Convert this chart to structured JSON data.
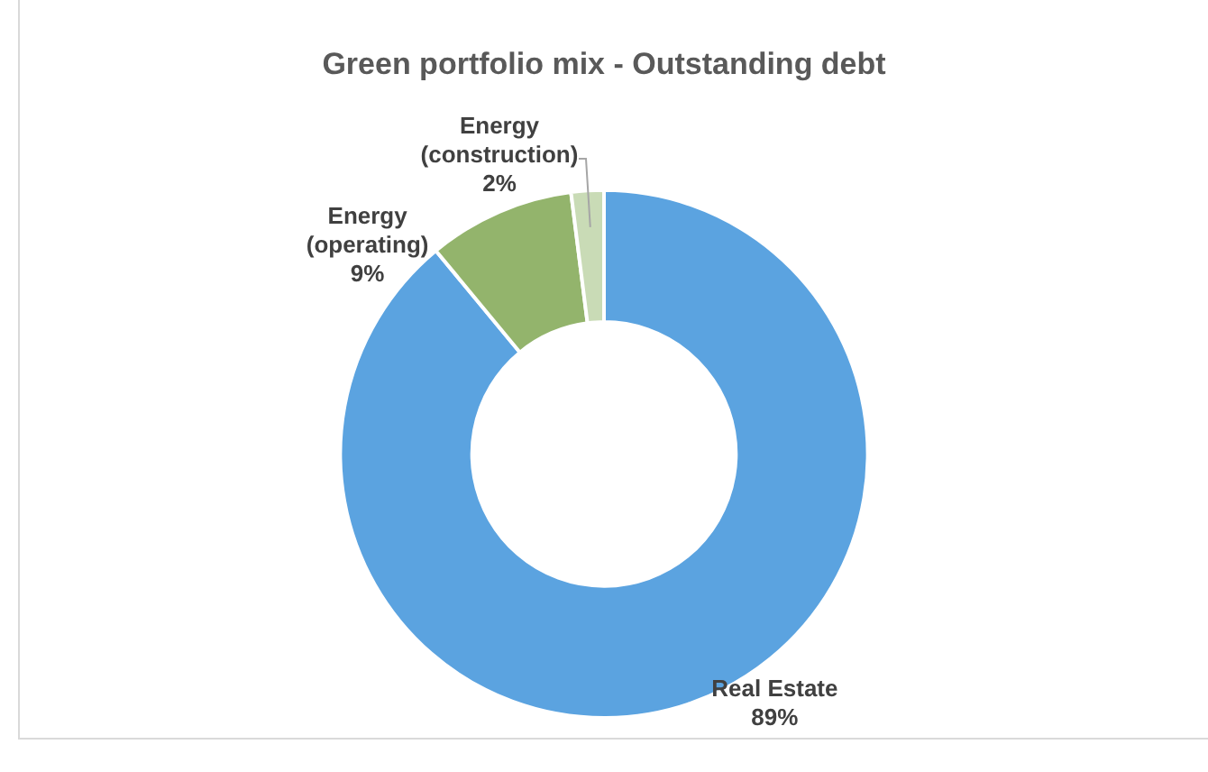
{
  "chart_data": {
    "type": "donut",
    "title": "Green portfolio mix - Outstanding debt",
    "categories": [
      "Real Estate",
      "Energy (operating)",
      "Energy (construction)"
    ],
    "values": [
      89,
      9,
      2
    ],
    "value_labels": [
      "89%",
      "9%",
      "2%"
    ],
    "colors": [
      "#5ba3e0",
      "#93b46c",
      "#c9dbb6"
    ],
    "legend": false
  }
}
